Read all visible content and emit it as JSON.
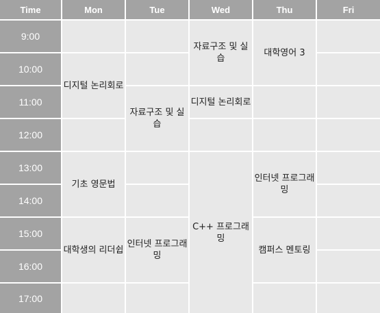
{
  "header": {
    "time_label": "Time",
    "days": [
      "Mon",
      "Tue",
      "Wed",
      "Thu",
      "Fri"
    ]
  },
  "times": [
    "9:00",
    "10:00",
    "11:00",
    "12:00",
    "13:00",
    "14:00",
    "15:00",
    "16:00",
    "17:00"
  ],
  "courses": {
    "mon_digital_logic": "디지털 논리회로",
    "mon_basic_grammar": "기초 영문법",
    "mon_leadership": "대학생의 리더쉽",
    "tue_data_structures": "자료구조 및 실습",
    "tue_internet_programming": "인터넷 프로그래밍",
    "wed_data_structures": "자료구조 및 실습",
    "wed_digital_logic": "디지털 논리회로",
    "wed_cpp_programming": "C++ 프로그래밍",
    "thu_college_english": "대학영어 3",
    "thu_internet_programming": "인터넷 프로그래밍",
    "thu_campus_mentoring": "캠퍼스 멘토링"
  },
  "colors": {
    "header_bg": "#a3a3a3",
    "cell_bg": "#e8e8e8",
    "grid_line": "#ffffff"
  }
}
